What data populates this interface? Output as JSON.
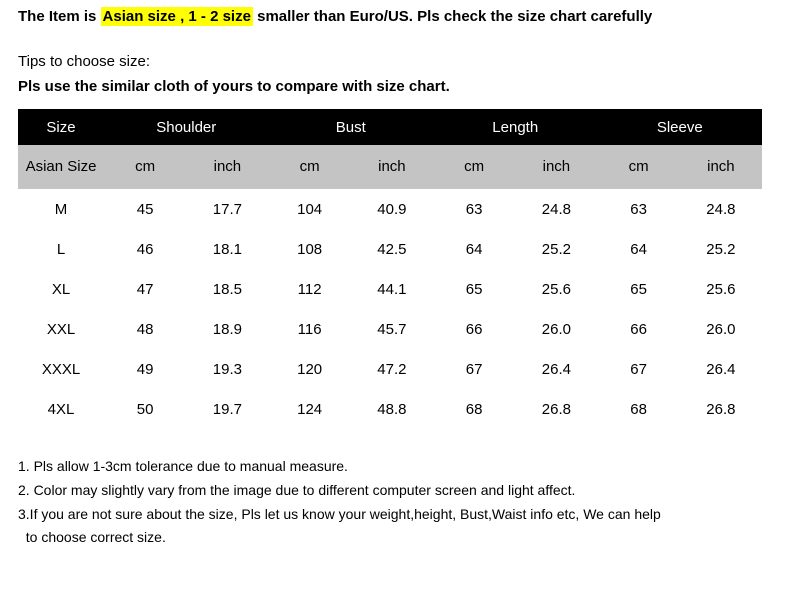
{
  "top": {
    "prefix": "The Item is ",
    "highlight": "Asian size , 1 - 2 size",
    "suffix": " smaller than Euro/US. Pls check the size chart carefully"
  },
  "tips": {
    "line1": "Tips to choose size:",
    "line2": "Pls use the similar cloth of yours to compare with size chart."
  },
  "table": {
    "header1": [
      "Size",
      "Shoulder",
      "Bust",
      "Length",
      "Sleeve"
    ],
    "header2": [
      "Asian Size",
      "cm",
      "inch",
      "cm",
      "inch",
      "cm",
      "inch",
      "cm",
      "inch"
    ],
    "rows": [
      [
        "M",
        "45",
        "17.7",
        "104",
        "40.9",
        "63",
        "24.8",
        "63",
        "24.8"
      ],
      [
        "L",
        "46",
        "18.1",
        "108",
        "42.5",
        "64",
        "25.2",
        "64",
        "25.2"
      ],
      [
        "XL",
        "47",
        "18.5",
        "112",
        "44.1",
        "65",
        "25.6",
        "65",
        "25.6"
      ],
      [
        "XXL",
        "48",
        "18.9",
        "116",
        "45.7",
        "66",
        "26.0",
        "66",
        "26.0"
      ],
      [
        "XXXL",
        "49",
        "19.3",
        "120",
        "47.2",
        "67",
        "26.4",
        "67",
        "26.4"
      ],
      [
        "4XL",
        "50",
        "19.7",
        "124",
        "48.8",
        "68",
        "26.8",
        "68",
        "26.8"
      ]
    ]
  },
  "notes": [
    "1. Pls allow 1-3cm tolerance due to manual measure.",
    "2. Color may slightly vary from the image due to different computer screen and light affect.",
    "3.If you are not sure about the size, Pls let us know your weight,height, Bust,Waist info etc, We can help",
    "  to choose correct size."
  ],
  "style": {
    "highlight_bg": "#fffe03",
    "header_bg": "#000000",
    "header_fg": "#ffffff",
    "subheader_bg": "#c4c4c4",
    "body_bg": "#ffffff",
    "text_color": "#000000"
  }
}
